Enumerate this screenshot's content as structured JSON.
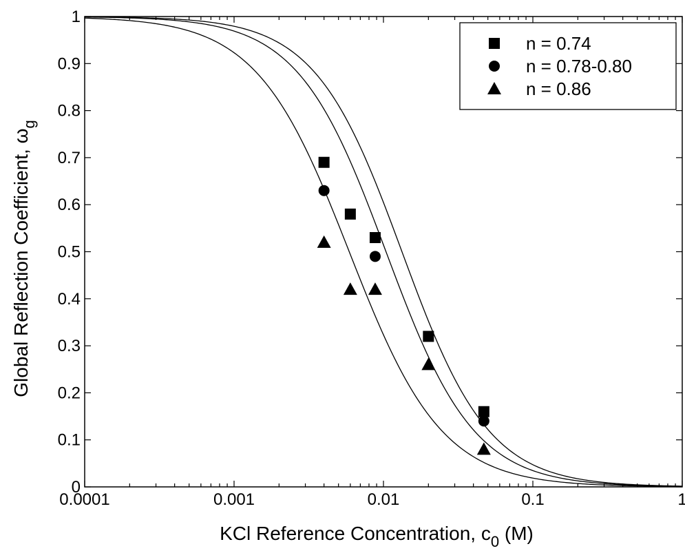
{
  "chart_data": {
    "type": "scatter",
    "title": "",
    "xlabel": "KCl Reference Concentration, c",
    "xlabel_subscript": "0",
    "xlabel_suffix": " (M)",
    "ylabel": "Global Reflection Coefficient, ω",
    "ylabel_subscript": "g",
    "xscale": "log",
    "xlim": [
      0.0001,
      1
    ],
    "ylim": [
      0,
      1
    ],
    "x_ticks": [
      0.0001,
      0.001,
      0.01,
      0.1,
      1
    ],
    "x_tick_labels": [
      "0.0001",
      "0.001",
      "0.01",
      "0.1",
      "1"
    ],
    "y_ticks": [
      0,
      0.1,
      0.2,
      0.3,
      0.4,
      0.5,
      0.6,
      0.7,
      0.8,
      0.9,
      1
    ],
    "y_tick_labels": [
      "0",
      "0.1",
      "0.2",
      "0.3",
      "0.4",
      "0.5",
      "0.6",
      "0.7",
      "0.8",
      "0.9",
      "1"
    ],
    "grid": false,
    "legend_position": "top-right",
    "series": [
      {
        "name": "n = 0.74",
        "marker": "square",
        "x": [
          0.004,
          0.006,
          0.0088,
          0.02,
          0.047
        ],
        "y": [
          0.69,
          0.58,
          0.53,
          0.32,
          0.16
        ]
      },
      {
        "name": "n = 0.78-0.80",
        "marker": "circle",
        "x": [
          0.004,
          0.0088,
          0.047
        ],
        "y": [
          0.63,
          0.49,
          0.14
        ]
      },
      {
        "name": "n = 0.86",
        "marker": "triangle",
        "x": [
          0.004,
          0.006,
          0.0088,
          0.02,
          0.047
        ],
        "y": [
          0.52,
          0.42,
          0.42,
          0.26,
          0.08
        ]
      }
    ],
    "fit_curves": [
      {
        "model": "1/(1+(c/c50)^p)",
        "c50": 0.0133,
        "p": 1.49
      },
      {
        "model": "1/(1+(c/c50)^p)",
        "c50": 0.0104,
        "p": 1.47
      },
      {
        "model": "1/(1+(c/c50)^p)",
        "c50": 0.0059,
        "p": 1.4
      }
    ]
  }
}
